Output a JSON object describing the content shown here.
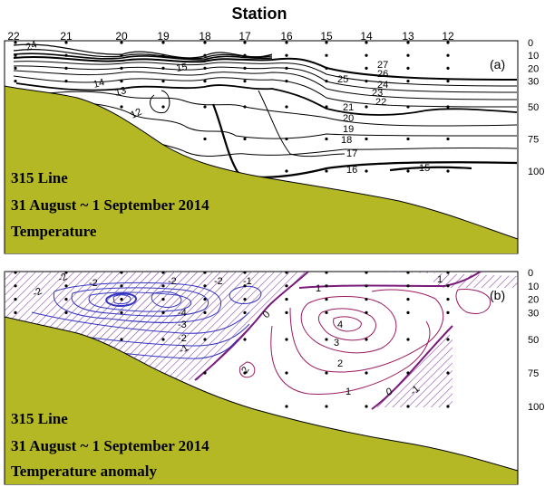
{
  "figure": {
    "title": "Station",
    "stations": [
      "22",
      "21",
      "20",
      "19",
      "18",
      "17",
      "16",
      "15",
      "14",
      "13",
      "12"
    ],
    "depth_ticks": [
      "0",
      "10",
      "20",
      "30",
      "50",
      "75",
      "100"
    ],
    "colors": {
      "seafloor": "#b5b825",
      "temperature_lines": "#000000",
      "anomaly_negative": "#3535c0",
      "anomaly_positive": "#9a1a60",
      "anomaly_zero": "#7a1a7a",
      "hatch": "#8a4aa0"
    }
  },
  "chart_data": [
    {
      "type": "contour",
      "panel_label": "(a)",
      "caption": [
        "315 Line",
        "31 August ~ 1 September 2014",
        "Temperature"
      ],
      "x_categories": [
        "22",
        "21",
        "20",
        "19",
        "18",
        "17",
        "16",
        "15",
        "14",
        "13",
        "12"
      ],
      "y_depth_ticks": [
        0,
        10,
        20,
        30,
        50,
        75,
        100
      ],
      "contour_labels": [
        "24",
        "15",
        "14",
        "13",
        "12",
        "25",
        "27",
        "26",
        "24",
        "23",
        "22",
        "21",
        "20",
        "19",
        "18",
        "17",
        "16",
        "15"
      ]
    },
    {
      "type": "contour",
      "panel_label": "(b)",
      "caption": [
        "315 Line",
        "31 August ~ 1 September 2014",
        "Temperature anomaly"
      ],
      "x_categories": [
        "22",
        "21",
        "20",
        "19",
        "18",
        "17",
        "16",
        "15",
        "14",
        "13",
        "12"
      ],
      "y_depth_ticks": [
        0,
        10,
        20,
        30,
        50,
        75,
        100
      ],
      "contour_labels": [
        "-2",
        "-2",
        "-2",
        "-2",
        "-2",
        "-1",
        "-4",
        "-3",
        "-2",
        "-1",
        "0",
        "1",
        "4",
        "3",
        "2",
        "2",
        "1",
        "0",
        "-1",
        "1"
      ]
    }
  ]
}
